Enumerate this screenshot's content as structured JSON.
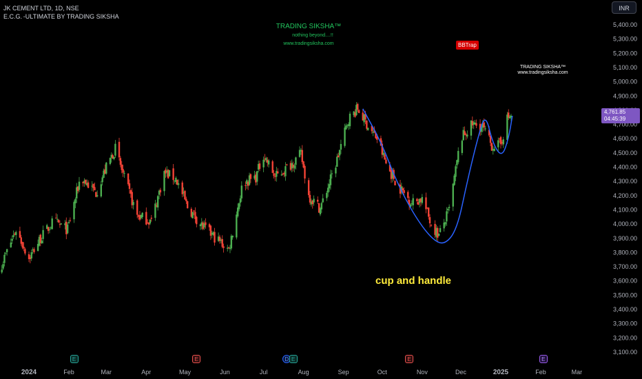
{
  "header": {
    "symbol": "JK CEMENT LTD, 1D, NSE",
    "indicator": "E.C.G. -ULTIMATE BY TRADING SIKSHA"
  },
  "watermark": {
    "brand": "TRADING SIKSHA™",
    "tagline": "nothing beyond....!!",
    "url": "www.tradingsiksha.com",
    "brand2": "TRADING SIKSHA™",
    "url2": "www.tradingsiksha.com"
  },
  "signal_label": "BBTrap",
  "pattern_label": "cup and handle",
  "currency_button": "INR",
  "last_price": {
    "price": "4,761.85",
    "countdown": "04:45:39"
  },
  "colors": {
    "background": "#000000",
    "up_candle": "#4caf50",
    "down_candle": "#f44336",
    "pattern_curve": "#2962ff",
    "pattern_text": "#ffeb3b",
    "watermark": "#22c55e",
    "price_tag": "#7e57c2"
  },
  "events": [
    {
      "letter": "E",
      "kind": "e-green",
      "date": "2024-02-05"
    },
    {
      "letter": "E",
      "kind": "e-red",
      "date": "2024-05-10"
    },
    {
      "letter": "D",
      "kind": "d",
      "date": "2024-07-19"
    },
    {
      "letter": "E",
      "kind": "e-green",
      "date": "2024-07-24"
    },
    {
      "letter": "E",
      "kind": "e-red",
      "date": "2024-10-22"
    },
    {
      "letter": "E",
      "kind": "e-purple",
      "date": "2025-02-03"
    }
  ],
  "chart_data": {
    "type": "candlestick",
    "ylim": [
      3040,
      5460
    ],
    "y_ticks": [
      "5,400.00",
      "5,300.00",
      "5,200.00",
      "5,100.00",
      "5,000.00",
      "4,900.00",
      "4,800.00",
      "4,700.00",
      "4,600.00",
      "4,500.00",
      "4,400.00",
      "4,300.00",
      "4,200.00",
      "4,100.00",
      "4,000.00",
      "3,900.00",
      "3,800.00",
      "3,700.00",
      "3,600.00",
      "3,500.00",
      "3,400.00",
      "3,300.00",
      "3,200.00",
      "3,100.00"
    ],
    "x_ticks": [
      "2024",
      "Feb",
      "Mar",
      "Apr",
      "May",
      "Jun",
      "Jul",
      "Aug",
      "Sep",
      "Oct",
      "Nov",
      "Dec",
      "2025",
      "Feb",
      "Mar"
    ],
    "x_tick_dates": [
      "2024-01-01",
      "2024-02-01",
      "2024-03-01",
      "2024-04-01",
      "2024-05-01",
      "2024-06-01",
      "2024-07-01",
      "2024-08-01",
      "2024-09-01",
      "2024-10-01",
      "2024-11-01",
      "2024-12-01",
      "2025-01-01",
      "2025-02-01",
      "2025-03-01"
    ],
    "close_anchors": [
      [
        "2023-12-11",
        3720
      ],
      [
        "2023-12-22",
        3960
      ],
      [
        "2024-01-01",
        3760
      ],
      [
        "2024-01-10",
        3900
      ],
      [
        "2024-01-20",
        4020
      ],
      [
        "2024-01-31",
        3960
      ],
      [
        "2024-02-10",
        4330
      ],
      [
        "2024-02-22",
        4220
      ],
      [
        "2024-03-02",
        4420
      ],
      [
        "2024-03-08",
        4530
      ],
      [
        "2024-03-15",
        4320
      ],
      [
        "2024-03-25",
        4060
      ],
      [
        "2024-04-05",
        4020
      ],
      [
        "2024-04-15",
        4360
      ],
      [
        "2024-04-24",
        4320
      ],
      [
        "2024-05-03",
        4120
      ],
      [
        "2024-05-15",
        3980
      ],
      [
        "2024-05-25",
        3900
      ],
      [
        "2024-06-04",
        3820
      ],
      [
        "2024-06-15",
        4290
      ],
      [
        "2024-06-25",
        4330
      ],
      [
        "2024-07-01",
        4490
      ],
      [
        "2024-07-10",
        4330
      ],
      [
        "2024-07-20",
        4400
      ],
      [
        "2024-07-30",
        4490
      ],
      [
        "2024-08-05",
        4200
      ],
      [
        "2024-08-14",
        4110
      ],
      [
        "2024-08-25",
        4390
      ],
      [
        "2024-09-05",
        4740
      ],
      [
        "2024-09-12",
        4810
      ],
      [
        "2024-09-20",
        4690
      ],
      [
        "2024-09-27",
        4600
      ],
      [
        "2024-10-05",
        4400
      ],
      [
        "2024-10-15",
        4250
      ],
      [
        "2024-10-24",
        4150
      ],
      [
        "2024-11-01",
        4180
      ],
      [
        "2024-11-08",
        4000
      ],
      [
        "2024-11-14",
        3920
      ],
      [
        "2024-11-22",
        4100
      ],
      [
        "2024-12-01",
        4600
      ],
      [
        "2024-12-10",
        4700
      ],
      [
        "2024-12-18",
        4680
      ],
      [
        "2024-12-25",
        4550
      ],
      [
        "2025-01-01",
        4560
      ],
      [
        "2025-01-06",
        4740
      ],
      [
        "2025-01-09",
        4762
      ]
    ],
    "annotations": [
      "cup and handle",
      "BBTrap"
    ]
  }
}
